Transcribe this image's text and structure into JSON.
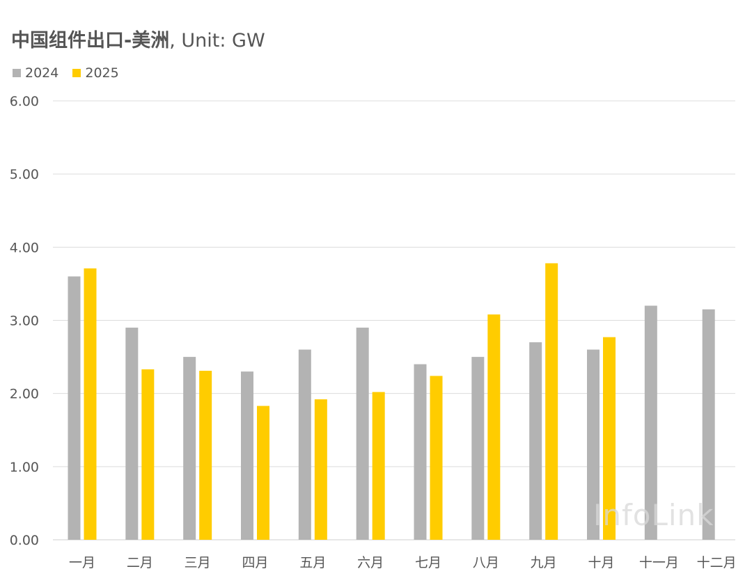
{
  "title": {
    "main": "中国组件出口-美洲",
    "unit": ", Unit: GW"
  },
  "watermark": "InfoLink",
  "chart_data": {
    "type": "bar",
    "categories": [
      "一月",
      "二月",
      "三月",
      "四月",
      "五月",
      "六月",
      "七月",
      "八月",
      "九月",
      "十月",
      "十一月",
      "十二月"
    ],
    "series": [
      {
        "name": "2024",
        "color": "#b3b3b3",
        "values": [
          3.6,
          2.9,
          2.5,
          2.3,
          2.6,
          2.9,
          2.4,
          2.5,
          2.7,
          2.6,
          3.2,
          3.15
        ]
      },
      {
        "name": "2025",
        "color": "#ffcc00",
        "values": [
          3.71,
          2.33,
          2.31,
          1.83,
          1.92,
          2.02,
          2.24,
          3.08,
          3.78,
          2.77,
          null,
          null
        ]
      }
    ],
    "yticks": [
      "0.00",
      "1.00",
      "2.00",
      "3.00",
      "4.00",
      "5.00",
      "6.00"
    ],
    "ylim": [
      0,
      6
    ],
    "grid": true,
    "legend_position": "top-left"
  }
}
